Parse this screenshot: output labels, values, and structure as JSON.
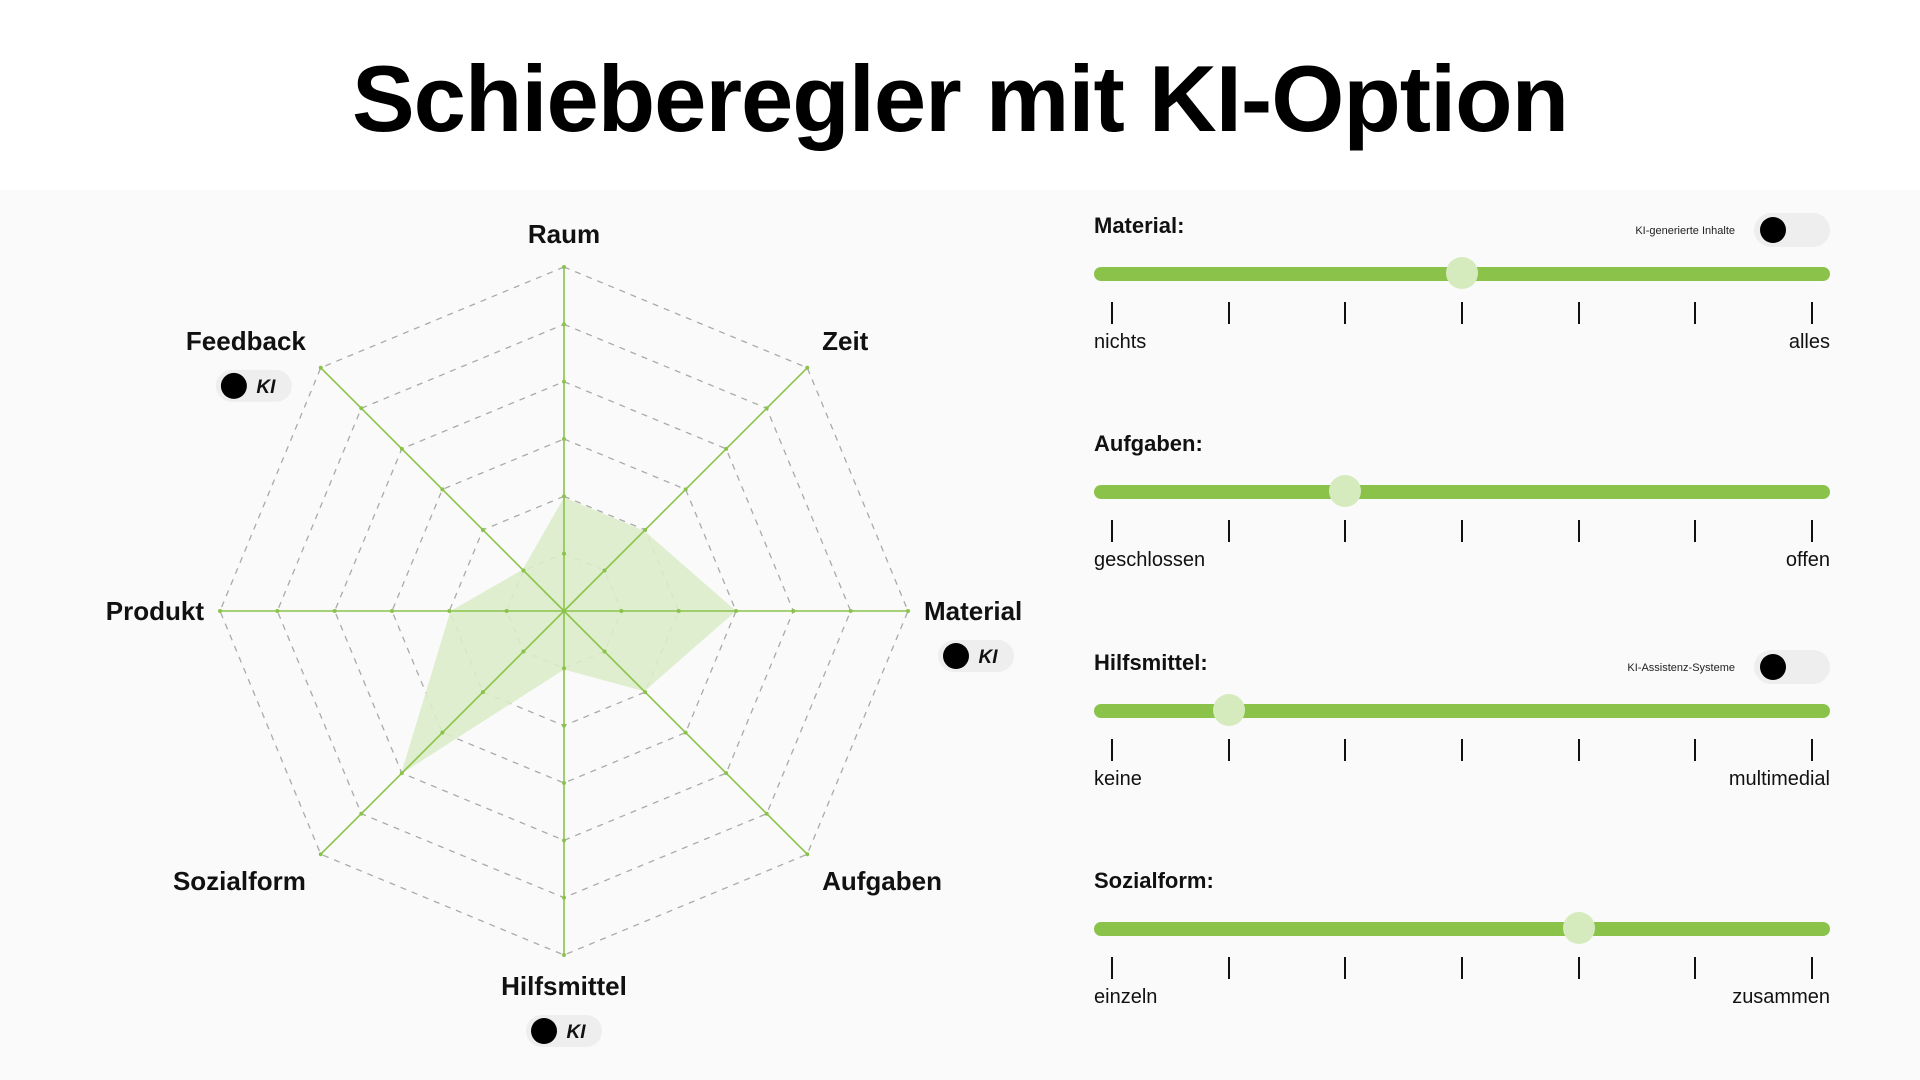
{
  "title": "Schieberegler mit KI-Option",
  "radar": {
    "axes": [
      {
        "label": "Raum",
        "value": 0.33,
        "ai": false
      },
      {
        "label": "Zeit",
        "value": 0.33,
        "ai": false
      },
      {
        "label": "Material",
        "value": 0.5,
        "ai": true
      },
      {
        "label": "Aufgaben",
        "value": 0.33,
        "ai": false
      },
      {
        "label": "Hilfsmittel",
        "value": 0.17,
        "ai": true
      },
      {
        "label": "Sozialform",
        "value": 0.67,
        "ai": false
      },
      {
        "label": "Produkt",
        "value": 0.33,
        "ai": false
      },
      {
        "label": "Feedback",
        "value": 0.17,
        "ai": true
      }
    ],
    "rings": 6,
    "ai_pill_label": "KI",
    "fill_color": "#dcecc9",
    "axis_color": "#8bc34a",
    "grid_color": "#aaaaaa"
  },
  "sliders": [
    {
      "label": "Material:",
      "value": 0.5,
      "left_label": "nichts",
      "right_label": "alles",
      "toggle_label": "KI-generierte Inhalte",
      "ticks": 7
    },
    {
      "label": "Aufgaben:",
      "value": 0.333,
      "left_label": "geschlossen",
      "right_label": "offen",
      "toggle_label": null,
      "ticks": 7
    },
    {
      "label": "Hilfsmittel:",
      "value": 0.167,
      "left_label": "keine",
      "right_label": "multimedial",
      "toggle_label": "KI-Assistenz-Systeme",
      "ticks": 7
    },
    {
      "label": "Sozialform:",
      "value": 0.667,
      "left_label": "einzeln",
      "right_label": "zusammen",
      "toggle_label": null,
      "ticks": 7
    }
  ],
  "colors": {
    "accent": "#8bc34a",
    "handle": "#d5ebbe",
    "toggle_off_track": "#eeeeee",
    "toggle_knob": "#000000"
  }
}
